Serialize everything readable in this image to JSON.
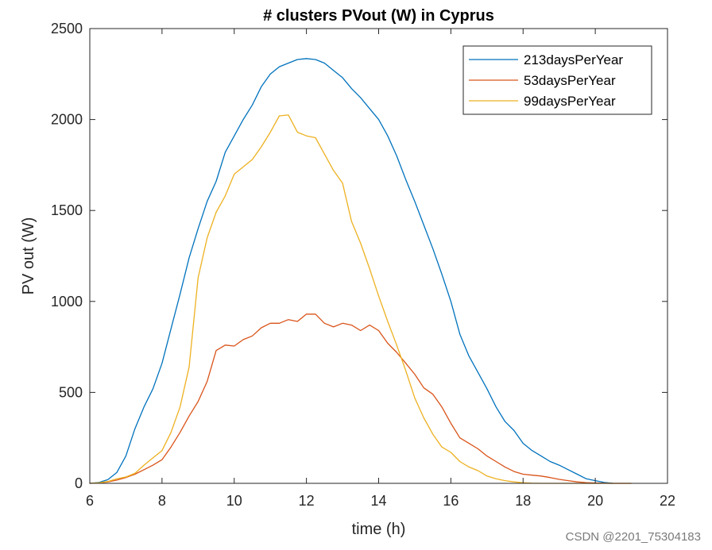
{
  "chart_data": {
    "type": "line",
    "title": "# clusters PVout (W) in Cyprus",
    "xlabel": "time (h)",
    "ylabel": "PV out (W)",
    "xlim": [
      6,
      22
    ],
    "ylim": [
      0,
      2500
    ],
    "xticks": [
      6,
      8,
      10,
      12,
      14,
      16,
      18,
      20,
      22
    ],
    "yticks": [
      0,
      500,
      1000,
      1500,
      2000,
      2500
    ],
    "grid": false,
    "legend_position": "top-right",
    "series": [
      {
        "name": "213daysPerYear",
        "color": "#0072BD",
        "x": [
          6,
          6.25,
          6.5,
          6.75,
          7,
          7.25,
          7.5,
          7.75,
          8,
          8.25,
          8.5,
          8.75,
          9,
          9.25,
          9.5,
          9.75,
          10,
          10.25,
          10.5,
          10.75,
          11,
          11.25,
          11.5,
          11.75,
          12,
          12.25,
          12.5,
          12.75,
          13,
          13.25,
          13.5,
          13.75,
          14,
          14.25,
          14.5,
          14.75,
          15,
          15.25,
          15.5,
          15.75,
          16,
          16.25,
          16.5,
          16.75,
          17,
          17.25,
          17.5,
          17.75,
          18,
          18.25,
          18.5,
          18.75,
          19,
          19.25,
          19.5,
          19.75,
          20,
          20.25,
          20.5
        ],
        "values": [
          0,
          5,
          20,
          60,
          150,
          300,
          420,
          520,
          660,
          850,
          1040,
          1240,
          1400,
          1550,
          1660,
          1820,
          1910,
          2000,
          2080,
          2180,
          2250,
          2290,
          2310,
          2330,
          2335,
          2330,
          2310,
          2270,
          2230,
          2170,
          2120,
          2060,
          2000,
          1910,
          1800,
          1670,
          1550,
          1420,
          1290,
          1150,
          1000,
          820,
          700,
          610,
          520,
          420,
          340,
          290,
          220,
          180,
          150,
          120,
          100,
          75,
          50,
          25,
          15,
          5,
          0
        ]
      },
      {
        "name": "53daysPerYear",
        "color": "#D95319",
        "x": [
          6,
          6.25,
          6.5,
          6.75,
          7,
          7.25,
          7.5,
          7.75,
          8,
          8.25,
          8.5,
          8.75,
          9,
          9.25,
          9.5,
          9.75,
          10,
          10.25,
          10.5,
          10.75,
          11,
          11.25,
          11.5,
          11.75,
          12,
          12.25,
          12.5,
          12.75,
          13,
          13.25,
          13.5,
          13.75,
          14,
          14.25,
          14.5,
          14.75,
          15,
          15.25,
          15.5,
          15.75,
          16,
          16.25,
          16.5,
          16.75,
          17,
          17.25,
          17.5,
          17.75,
          18,
          18.25,
          18.5,
          18.75,
          19,
          19.25,
          19.5,
          19.75,
          20,
          20.25,
          20.5,
          20.75,
          21
        ],
        "values": [
          0,
          2,
          8,
          18,
          32,
          50,
          75,
          100,
          130,
          200,
          280,
          370,
          450,
          560,
          730,
          760,
          755,
          790,
          810,
          855,
          880,
          880,
          900,
          890,
          930,
          930,
          880,
          860,
          880,
          870,
          840,
          870,
          840,
          770,
          720,
          660,
          600,
          525,
          490,
          420,
          330,
          250,
          220,
          190,
          150,
          120,
          90,
          65,
          50,
          45,
          40,
          32,
          22,
          15,
          8,
          4,
          2,
          1,
          0,
          0,
          0
        ]
      },
      {
        "name": "99daysPerYear",
        "color": "#EDB120",
        "x": [
          6,
          6.25,
          6.5,
          6.75,
          7,
          7.25,
          7.5,
          7.75,
          8,
          8.25,
          8.5,
          8.75,
          9,
          9.25,
          9.5,
          9.75,
          10,
          10.25,
          10.5,
          10.75,
          11,
          11.25,
          11.5,
          11.75,
          12,
          12.25,
          12.5,
          12.75,
          13,
          13.25,
          13.5,
          13.75,
          14,
          14.25,
          14.5,
          14.75,
          15,
          15.25,
          15.5,
          15.75,
          16,
          16.25,
          16.5,
          16.75,
          17,
          17.25,
          17.5,
          17.75,
          18,
          18.25,
          18.5,
          18.75,
          19,
          19.25,
          19.5,
          19.75,
          20,
          20.25,
          20.5,
          20.75,
          21
        ],
        "values": [
          0,
          3,
          10,
          25,
          35,
          55,
          100,
          140,
          180,
          280,
          420,
          640,
          1130,
          1350,
          1490,
          1580,
          1700,
          1740,
          1780,
          1850,
          1930,
          2020,
          2025,
          1930,
          1910,
          1900,
          1810,
          1720,
          1650,
          1440,
          1320,
          1180,
          1030,
          890,
          760,
          620,
          470,
          360,
          270,
          200,
          170,
          120,
          90,
          70,
          40,
          25,
          15,
          8,
          3,
          1,
          0,
          0,
          0,
          0,
          0,
          0,
          0,
          0,
          0,
          0,
          0
        ]
      }
    ]
  },
  "watermark": "CSDN @2201_75304183"
}
